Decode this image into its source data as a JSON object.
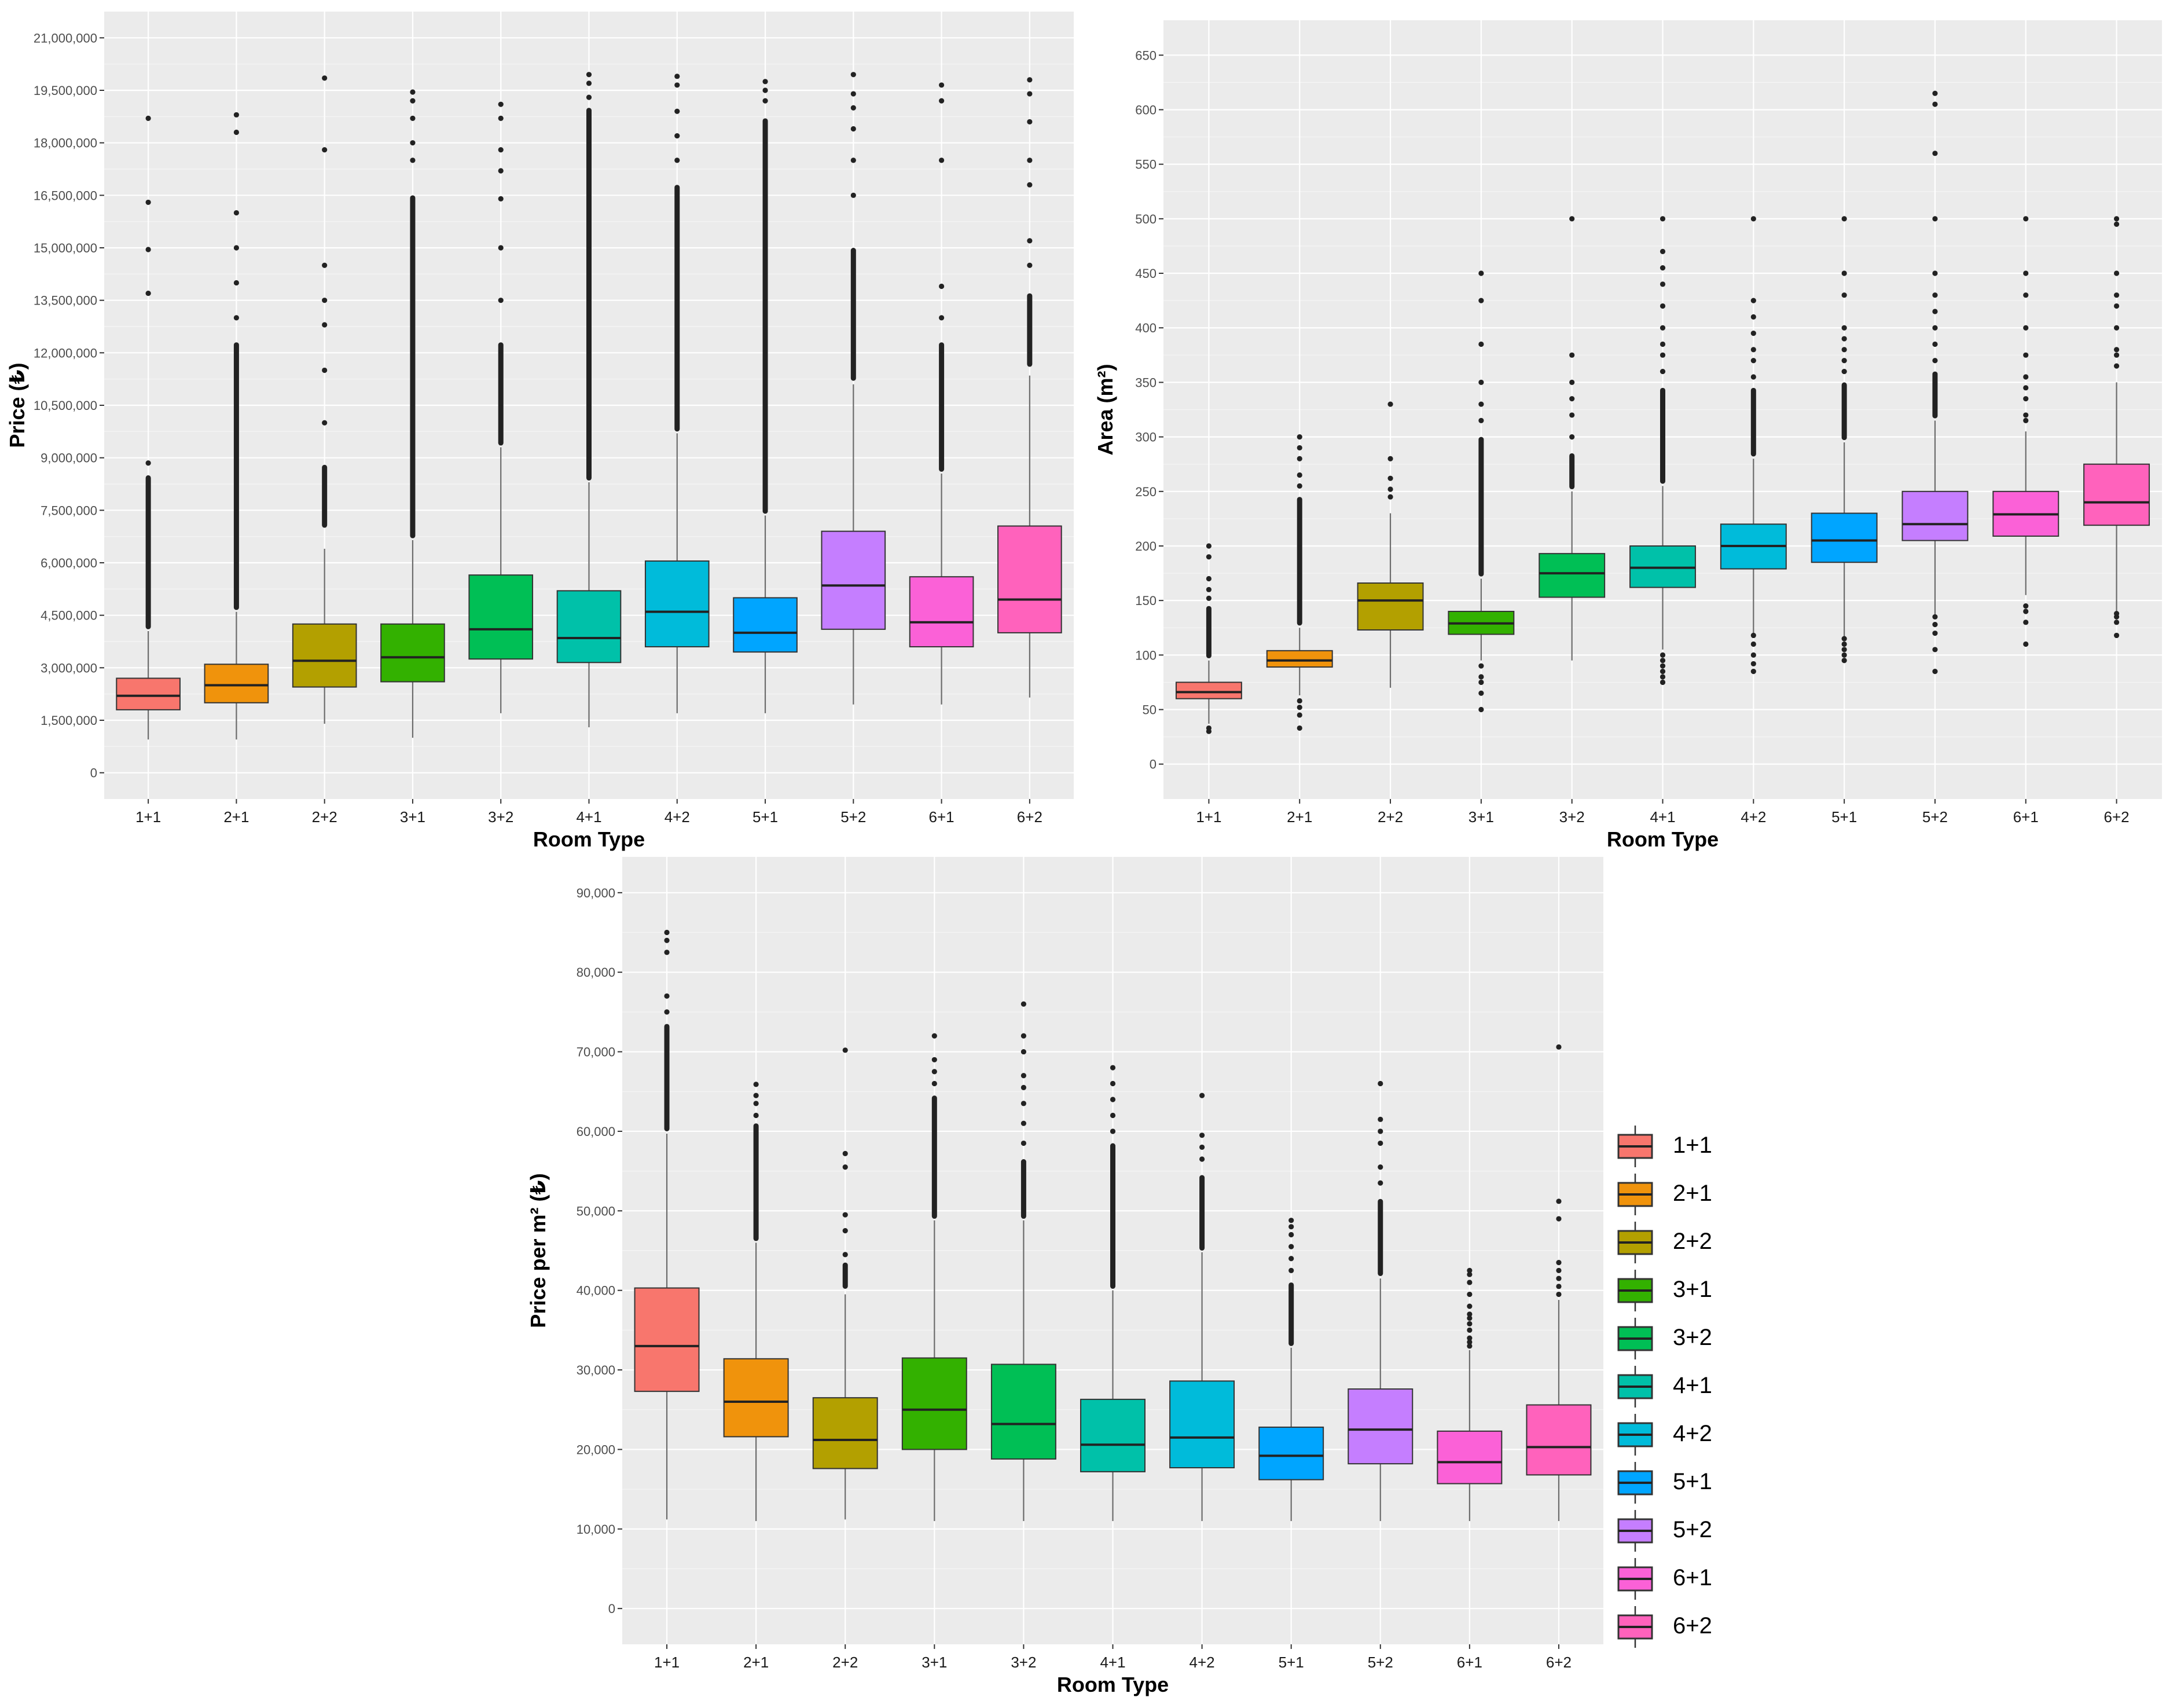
{
  "categories": [
    "1+1",
    "2+1",
    "2+2",
    "3+1",
    "3+2",
    "4+1",
    "4+2",
    "5+1",
    "5+2",
    "6+1",
    "6+2"
  ],
  "colors": {
    "1+1": "#F8766D",
    "2+1": "#F0930C",
    "2+2": "#B3A000",
    "3+1": "#33B100",
    "3+2": "#00BF55",
    "4+1": "#00C1A9",
    "4+2": "#00BBDA",
    "5+1": "#00A5FF",
    "5+2": "#C57EFF",
    "6+1": "#FB61D7",
    "6+2": "#FF62BC"
  },
  "chart_data": [
    {
      "type": "boxplot",
      "id": "price",
      "xlabel": "Room Type",
      "ylabel": "Price (₺)",
      "ylim": [
        -750000,
        21750000
      ],
      "yticks": [
        0,
        1500000,
        3000000,
        4500000,
        6000000,
        7500000,
        9000000,
        10500000,
        12000000,
        13500000,
        15000000,
        16500000,
        18000000,
        19500000,
        21000000
      ],
      "ytick_labels": [
        "0",
        "1,500,000",
        "3,000,000",
        "4,500,000",
        "6,000,000",
        "7,500,000",
        "9,000,000",
        "10,500,000",
        "12,000,000",
        "13,500,000",
        "15,000,000",
        "16,500,000",
        "18,000,000",
        "19,500,000",
        "21,000,000"
      ],
      "boxes": [
        {
          "category": "1+1",
          "whisker_low": 950000,
          "q1": 1800000,
          "median": 2200000,
          "q3": 2700000,
          "whisker_high": 4050000,
          "outlier_band": [
            4100000,
            8500000
          ],
          "outliers": [
            8850000,
            13700000,
            14950000,
            16300000,
            18700000
          ]
        },
        {
          "category": "2+1",
          "whisker_low": 950000,
          "q1": 2000000,
          "median": 2500000,
          "q3": 3100000,
          "whisker_high": 4600000,
          "outlier_band": [
            4650000,
            12300000
          ],
          "outliers": [
            13000000,
            14000000,
            15000000,
            16000000,
            18300000,
            18800000
          ]
        },
        {
          "category": "2+2",
          "whisker_low": 1400000,
          "q1": 2450000,
          "median": 3200000,
          "q3": 4250000,
          "whisker_high": 6400000,
          "outlier_band": [
            7000000,
            8800000
          ],
          "outliers": [
            10000000,
            11500000,
            12800000,
            13500000,
            14500000,
            17800000,
            19850000
          ]
        },
        {
          "category": "3+1",
          "whisker_low": 1000000,
          "q1": 2600000,
          "median": 3300000,
          "q3": 4250000,
          "whisker_high": 6650000,
          "outlier_band": [
            6700000,
            16500000
          ],
          "outliers": [
            17500000,
            18000000,
            18700000,
            19200000,
            19450000
          ]
        },
        {
          "category": "3+2",
          "whisker_low": 1700000,
          "q1": 3250000,
          "median": 4100000,
          "q3": 5650000,
          "whisker_high": 9300000,
          "outlier_band": [
            9350000,
            12300000
          ],
          "outliers": [
            13500000,
            15000000,
            16400000,
            17200000,
            17800000,
            18700000,
            19100000
          ]
        },
        {
          "category": "4+1",
          "whisker_low": 1300000,
          "q1": 3150000,
          "median": 3850000,
          "q3": 5200000,
          "whisker_high": 8300000,
          "outlier_band": [
            8350000,
            19000000
          ],
          "outliers": [
            19300000,
            19700000,
            19950000
          ]
        },
        {
          "category": "4+2",
          "whisker_low": 1700000,
          "q1": 3600000,
          "median": 4600000,
          "q3": 6050000,
          "whisker_high": 9700000,
          "outlier_band": [
            9750000,
            16800000
          ],
          "outliers": [
            17500000,
            18200000,
            18900000,
            19650000,
            19900000
          ]
        },
        {
          "category": "5+1",
          "whisker_low": 1700000,
          "q1": 3450000,
          "median": 4000000,
          "q3": 5000000,
          "whisker_high": 7350000,
          "outlier_band": [
            7400000,
            18700000
          ],
          "outliers": [
            19200000,
            19500000,
            19750000
          ]
        },
        {
          "category": "5+2",
          "whisker_low": 1950000,
          "q1": 4100000,
          "median": 5350000,
          "q3": 6900000,
          "whisker_high": 11100000,
          "outlier_band": [
            11200000,
            15000000
          ],
          "outliers": [
            16500000,
            17500000,
            18400000,
            19000000,
            19400000,
            19950000
          ]
        },
        {
          "category": "6+1",
          "whisker_low": 1950000,
          "q1": 3600000,
          "median": 4300000,
          "q3": 5600000,
          "whisker_high": 8550000,
          "outlier_band": [
            8600000,
            12300000
          ],
          "outliers": [
            13000000,
            13900000,
            17500000,
            19200000,
            19650000
          ]
        },
        {
          "category": "6+2",
          "whisker_low": 2150000,
          "q1": 4000000,
          "median": 4950000,
          "q3": 7050000,
          "whisker_high": 11350000,
          "outlier_band": [
            11600000,
            13700000
          ],
          "outliers": [
            14500000,
            15200000,
            16800000,
            17500000,
            18600000,
            19400000,
            19800000
          ]
        }
      ]
    },
    {
      "type": "boxplot",
      "id": "area",
      "xlabel": "Room Type",
      "ylabel": "Area (m²)",
      "ylim": [
        -32,
        682
      ],
      "yticks": [
        0,
        50,
        100,
        150,
        200,
        250,
        300,
        350,
        400,
        450,
        500,
        550,
        600,
        650
      ],
      "ytick_labels": [
        "0",
        "50",
        "100",
        "150",
        "200",
        "250",
        "300",
        "350",
        "400",
        "450",
        "500",
        "550",
        "600",
        "650"
      ],
      "boxes": [
        {
          "category": "1+1",
          "whisker_low": 37,
          "q1": 60,
          "median": 66,
          "q3": 75,
          "whisker_high": 95,
          "outlier_band": [
            97,
            145
          ],
          "outliers": [
            30,
            33,
            152,
            160,
            170,
            190,
            200
          ]
        },
        {
          "category": "2+1",
          "whisker_low": 63,
          "q1": 89,
          "median": 95,
          "q3": 104,
          "whisker_high": 125,
          "outlier_band": [
            127,
            245
          ],
          "outliers": [
            33,
            45,
            52,
            58,
            255,
            265,
            280,
            290,
            300
          ]
        },
        {
          "category": "2+2",
          "whisker_low": 70,
          "q1": 123,
          "median": 150,
          "q3": 166,
          "whisker_high": 230,
          "outlier_band": [],
          "outliers": [
            245,
            252,
            262,
            280,
            330
          ]
        },
        {
          "category": "3+1",
          "whisker_low": 95,
          "q1": 119,
          "median": 129,
          "q3": 140,
          "whisker_high": 170,
          "outlier_band": [
            172,
            300
          ],
          "outliers": [
            50,
            65,
            75,
            80,
            90,
            315,
            330,
            350,
            385,
            425,
            450
          ]
        },
        {
          "category": "3+2",
          "whisker_low": 95,
          "q1": 153,
          "median": 175,
          "q3": 193,
          "whisker_high": 250,
          "outlier_band": [
            252,
            285
          ],
          "outliers": [
            300,
            320,
            335,
            350,
            375,
            500
          ]
        },
        {
          "category": "4+1",
          "whisker_low": 105,
          "q1": 162,
          "median": 180,
          "q3": 200,
          "whisker_high": 255,
          "outlier_band": [
            257,
            345
          ],
          "outliers": [
            75,
            80,
            85,
            90,
            95,
            100,
            360,
            375,
            385,
            400,
            420,
            440,
            455,
            470,
            500
          ]
        },
        {
          "category": "4+2",
          "whisker_low": 120,
          "q1": 179,
          "median": 200,
          "q3": 220,
          "whisker_high": 280,
          "outlier_band": [
            282,
            345
          ],
          "outliers": [
            85,
            92,
            100,
            110,
            118,
            355,
            370,
            380,
            395,
            410,
            425,
            500
          ]
        },
        {
          "category": "5+1",
          "whisker_low": 115,
          "q1": 185,
          "median": 205,
          "q3": 230,
          "whisker_high": 295,
          "outlier_band": [
            297,
            350
          ],
          "outliers": [
            95,
            100,
            105,
            110,
            115,
            360,
            370,
            380,
            390,
            400,
            430,
            450,
            500
          ]
        },
        {
          "category": "5+2",
          "whisker_low": 135,
          "q1": 205,
          "median": 220,
          "q3": 250,
          "whisker_high": 315,
          "outlier_band": [
            317,
            360
          ],
          "outliers": [
            85,
            105,
            120,
            128,
            135,
            370,
            385,
            400,
            415,
            430,
            450,
            500,
            560,
            605,
            615
          ]
        },
        {
          "category": "6+1",
          "whisker_low": 155,
          "q1": 209,
          "median": 229,
          "q3": 250,
          "whisker_high": 305,
          "outlier_band": [],
          "outliers": [
            110,
            130,
            140,
            145,
            315,
            320,
            335,
            345,
            355,
            375,
            400,
            430,
            450,
            500
          ]
        },
        {
          "category": "6+2",
          "whisker_low": 140,
          "q1": 219,
          "median": 240,
          "q3": 275,
          "whisker_high": 350,
          "outlier_band": [],
          "outliers": [
            118,
            130,
            135,
            138,
            365,
            375,
            380,
            400,
            420,
            430,
            450,
            495,
            500
          ]
        }
      ]
    },
    {
      "type": "boxplot",
      "id": "price_per_m2",
      "xlabel": "Room Type",
      "ylabel": "Price per m² (₺)",
      "ylim": [
        -4500,
        94500
      ],
      "yticks": [
        0,
        10000,
        20000,
        30000,
        40000,
        50000,
        60000,
        70000,
        80000,
        90000
      ],
      "ytick_labels": [
        "0",
        "10,000",
        "20,000",
        "30,000",
        "40,000",
        "50,000",
        "60,000",
        "70,000",
        "80,000",
        "90,000"
      ],
      "boxes": [
        {
          "category": "1+1",
          "whisker_low": 11200,
          "q1": 27300,
          "median": 33000,
          "q3": 40300,
          "whisker_high": 59700,
          "outlier_band": [
            60000,
            73500
          ],
          "outliers": [
            75000,
            77000,
            82500,
            84000,
            85000
          ]
        },
        {
          "category": "2+1",
          "whisker_low": 11000,
          "q1": 21600,
          "median": 26000,
          "q3": 31400,
          "whisker_high": 46000,
          "outlier_band": [
            46200,
            61000
          ],
          "outliers": [
            62000,
            63500,
            64500,
            65900
          ]
        },
        {
          "category": "2+2",
          "whisker_low": 11200,
          "q1": 17600,
          "median": 21200,
          "q3": 26500,
          "whisker_high": 39500,
          "outlier_band": [
            40200,
            43500
          ],
          "outliers": [
            44500,
            47500,
            49500,
            55500,
            57200,
            70200
          ]
        },
        {
          "category": "3+1",
          "whisker_low": 11000,
          "q1": 20000,
          "median": 25000,
          "q3": 31500,
          "whisker_high": 48800,
          "outlier_band": [
            49000,
            64500
          ],
          "outliers": [
            66000,
            67500,
            69000,
            72000
          ]
        },
        {
          "category": "3+2",
          "whisker_low": 11000,
          "q1": 18800,
          "median": 23200,
          "q3": 30700,
          "whisker_high": 48800,
          "outlier_band": [
            49000,
            56500
          ],
          "outliers": [
            58500,
            61000,
            63500,
            65500,
            67000,
            70000,
            72000,
            76000
          ]
        },
        {
          "category": "4+1",
          "whisker_low": 11000,
          "q1": 17200,
          "median": 20600,
          "q3": 26300,
          "whisker_high": 40000,
          "outlier_band": [
            40200,
            58500
          ],
          "outliers": [
            60000,
            62000,
            64000,
            66000,
            68000
          ]
        },
        {
          "category": "4+2",
          "whisker_low": 11000,
          "q1": 17700,
          "median": 21500,
          "q3": 28600,
          "whisker_high": 44800,
          "outlier_band": [
            45000,
            54500
          ],
          "outliers": [
            56500,
            58000,
            59500,
            64500
          ]
        },
        {
          "category": "5+1",
          "whisker_low": 11000,
          "q1": 16200,
          "median": 19200,
          "q3": 22800,
          "whisker_high": 32800,
          "outlier_band": [
            33000,
            41000
          ],
          "outliers": [
            42500,
            44000,
            45500,
            47000,
            48000,
            48800
          ]
        },
        {
          "category": "5+2",
          "whisker_low": 11000,
          "q1": 18200,
          "median": 22500,
          "q3": 27600,
          "whisker_high": 41500,
          "outlier_band": [
            41800,
            51500
          ],
          "outliers": [
            53500,
            55500,
            58500,
            60000,
            61500,
            66000
          ]
        },
        {
          "category": "6+1",
          "whisker_low": 11000,
          "q1": 15700,
          "median": 18400,
          "q3": 22300,
          "whisker_high": 32500,
          "outlier_band": [],
          "outliers": [
            33000,
            33500,
            34000,
            35000,
            35800,
            36500,
            37000,
            38000,
            39500,
            41000,
            42000,
            42500
          ]
        },
        {
          "category": "6+2",
          "whisker_low": 11000,
          "q1": 16800,
          "median": 20300,
          "q3": 25600,
          "whisker_high": 38800,
          "outlier_band": [],
          "outliers": [
            39500,
            40500,
            41500,
            42500,
            43500,
            49000,
            51200,
            70600
          ]
        }
      ]
    }
  ],
  "legend": {
    "title": "",
    "items": [
      "1+1",
      "2+1",
      "2+2",
      "3+1",
      "3+2",
      "4+1",
      "4+2",
      "5+1",
      "5+2",
      "6+1",
      "6+2"
    ]
  }
}
